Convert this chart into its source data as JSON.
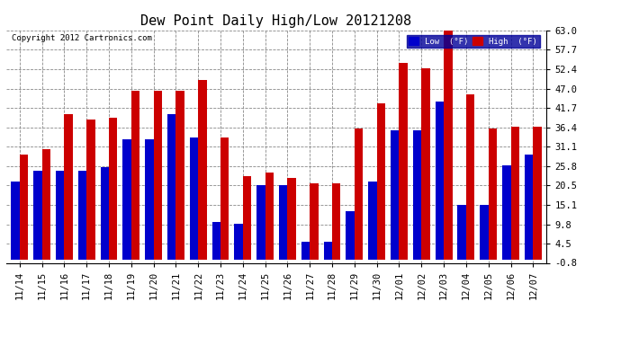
{
  "title": "Dew Point Daily High/Low 20121208",
  "copyright": "Copyright 2012 Cartronics.com",
  "dates": [
    "11/14",
    "11/15",
    "11/16",
    "11/17",
    "11/18",
    "11/19",
    "11/20",
    "11/21",
    "11/22",
    "11/23",
    "11/24",
    "11/25",
    "11/26",
    "11/27",
    "11/28",
    "11/29",
    "11/30",
    "12/01",
    "12/02",
    "12/03",
    "12/04",
    "12/05",
    "12/06",
    "12/07"
  ],
  "low_values": [
    21.5,
    24.5,
    24.5,
    24.5,
    25.5,
    33.0,
    33.0,
    40.0,
    33.5,
    10.5,
    10.0,
    20.5,
    20.5,
    5.0,
    5.0,
    13.5,
    21.5,
    35.5,
    35.5,
    43.5,
    15.0,
    15.0,
    26.0,
    29.0
  ],
  "high_values": [
    29.0,
    30.5,
    40.0,
    38.5,
    39.0,
    46.5,
    46.5,
    46.5,
    49.5,
    33.5,
    23.0,
    24.0,
    22.5,
    21.0,
    21.0,
    36.0,
    43.0,
    54.0,
    52.5,
    63.5,
    45.5,
    36.0,
    36.5,
    36.5
  ],
  "low_color": "#0000cc",
  "high_color": "#cc0000",
  "bg_color": "#ffffff",
  "grid_color": "#888888",
  "yticks": [
    -0.8,
    4.5,
    9.8,
    15.1,
    20.5,
    25.8,
    31.1,
    36.4,
    41.7,
    47.0,
    52.4,
    57.7,
    63.0
  ],
  "ylim": [
    -0.8,
    63.0
  ],
  "title_fontsize": 11,
  "tick_fontsize": 7.5,
  "legend_low_label": "Low  (°F)",
  "legend_high_label": "High  (°F)"
}
